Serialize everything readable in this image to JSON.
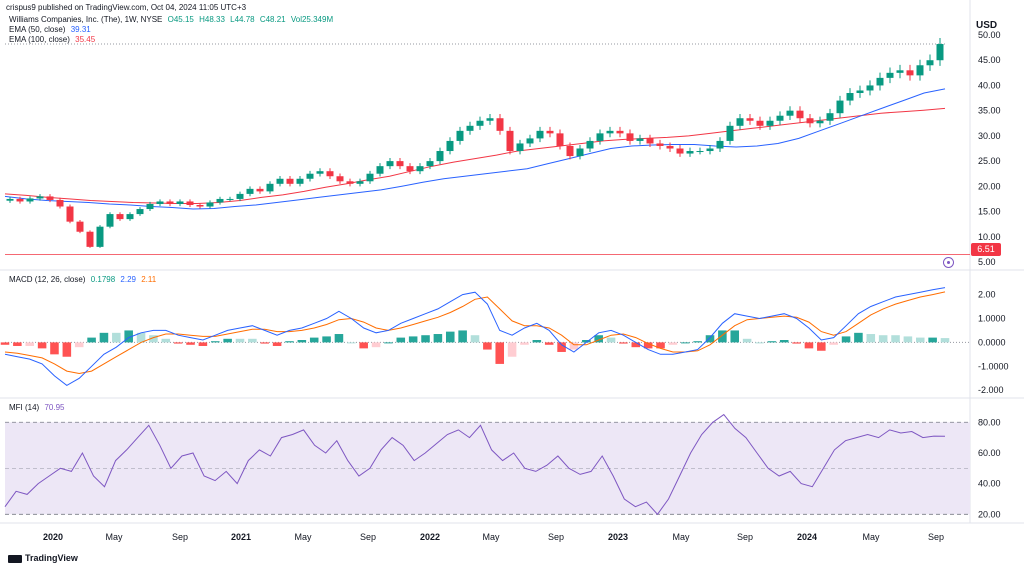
{
  "header": {
    "publisher": "crispus9 published on TradingView.com, Oct 04, 2024 11:05 UTC+3"
  },
  "instrument": {
    "name": "Williams Companies, Inc. (The), 1W, NYSE",
    "ohlc": {
      "o": "O45.15",
      "h": "H48.33",
      "l": "L44.78",
      "c": "C48.21",
      "vol": "Vol25.349M"
    }
  },
  "indicators": {
    "ema50": {
      "label": "EMA (50, close)",
      "value": "39.31",
      "color": "#2962ff"
    },
    "ema100": {
      "label": "EMA (100, close)",
      "value": "35.45",
      "color": "#f23645"
    },
    "macd": {
      "label": "MACD (12, 26, close)",
      "hist": "0.1798",
      "macd": "2.29",
      "signal": "2.11"
    },
    "mfi": {
      "label": "MFI (14)",
      "value": "70.95"
    }
  },
  "currency": "USD",
  "price_marker": "6.51",
  "footer": {
    "brand": "TradingView"
  },
  "colors": {
    "up": "#089981",
    "down": "#f23645",
    "macd": "#2962ff",
    "signal": "#ff6d00",
    "mfi": "#7e57c2",
    "mfi_band": "#ede7f6"
  },
  "chart_data": [
    {
      "type": "candlestick",
      "panel": "price",
      "axis_ticks": [
        "5.00",
        "10.00",
        "15.00",
        "20.00",
        "25.00",
        "30.00",
        "35.00",
        "40.00",
        "45.00",
        "50.00"
      ],
      "x_ticks": [
        "2020",
        "May",
        "Sep",
        "2021",
        "May",
        "Sep",
        "2022",
        "May",
        "Sep",
        "2023",
        "May",
        "Sep",
        "2024",
        "May",
        "Sep"
      ],
      "ylim": [
        5,
        50
      ],
      "horizontal_line": 6.51,
      "closes": [
        17.5,
        17.0,
        17.6,
        18.0,
        17.3,
        16.0,
        13.0,
        11.0,
        8.0,
        12.0,
        14.5,
        13.5,
        14.5,
        15.5,
        16.5,
        17.0,
        16.5,
        17.0,
        16.3,
        16.0,
        16.8,
        17.5,
        17.5,
        18.5,
        19.5,
        19.0,
        20.5,
        21.5,
        20.5,
        21.5,
        22.5,
        23.0,
        22.0,
        21.0,
        20.5,
        21.0,
        22.5,
        24.0,
        25.0,
        24.0,
        23.0,
        24.0,
        25.0,
        27.0,
        29.0,
        31.0,
        32.0,
        33.0,
        33.5,
        31.0,
        27.0,
        28.5,
        29.5,
        31.0,
        30.5,
        28.0,
        26.0,
        27.5,
        29.0,
        30.5,
        31.0,
        30.5,
        29.0,
        29.5,
        28.5,
        28.0,
        27.5,
        26.5,
        27.0,
        27.0,
        27.5,
        29.0,
        32.0,
        33.5,
        33.0,
        32.0,
        33.0,
        34.0,
        35.0,
        33.5,
        32.5,
        33.0,
        34.5,
        37.0,
        38.5,
        39.0,
        40.0,
        41.5,
        42.5,
        43.0,
        42.0,
        44.0,
        45.0,
        48.21
      ],
      "ema50": [
        18.0,
        17.5,
        17.2,
        17.0,
        16.8,
        16.5,
        16.3,
        16.0,
        15.8,
        15.5,
        15.6,
        16.0,
        16.3,
        16.8,
        17.3,
        17.8,
        18.3,
        18.8,
        19.3,
        20.0,
        20.8,
        21.5,
        22.0,
        22.5,
        23.0,
        23.5,
        24.5,
        25.5,
        26.5,
        27.5,
        28.0,
        28.2,
        28.3,
        28.3,
        28.0,
        27.8,
        28.0,
        28.5,
        29.5,
        31.0,
        32.5,
        34.0,
        35.5,
        37.0,
        38.5,
        39.31
      ],
      "ema100": [
        18.5,
        18.2,
        17.8,
        17.5,
        17.2,
        17.0,
        16.8,
        16.7,
        16.6,
        16.6,
        16.8,
        17.2,
        17.8,
        18.3,
        19.0,
        19.8,
        20.5,
        21.3,
        22.0,
        23.0,
        24.0,
        24.8,
        25.5,
        26.2,
        27.0,
        27.5,
        28.0,
        28.5,
        29.0,
        29.3,
        29.5,
        29.7,
        30.0,
        30.5,
        31.0,
        31.5,
        32.0,
        32.5,
        33.0,
        33.5,
        34.0,
        34.5,
        34.8,
        35.1,
        35.45
      ]
    },
    {
      "type": "macd",
      "panel": "macd",
      "axis_ticks": [
        "-2.000",
        "-1.0000",
        "0.0000",
        "1.0000",
        "2.00"
      ],
      "ylim": [
        -2.2,
        2.4
      ],
      "macd": [
        -0.5,
        -0.6,
        -0.7,
        -0.9,
        -1.4,
        -1.8,
        -1.5,
        -1.0,
        -0.5,
        -0.2,
        0.2,
        0.4,
        0.5,
        0.5,
        0.3,
        0.2,
        0.1,
        0.3,
        0.5,
        0.6,
        0.7,
        0.5,
        0.3,
        0.5,
        0.6,
        0.8,
        1.0,
        1.3,
        1.0,
        0.6,
        0.4,
        0.5,
        0.8,
        1.0,
        1.2,
        1.4,
        1.7,
        2.0,
        2.1,
        1.6,
        0.5,
        0.3,
        0.6,
        0.8,
        0.5,
        -0.1,
        -0.4,
        0.0,
        0.4,
        0.5,
        0.3,
        0.0,
        -0.3,
        -0.5,
        -0.5,
        -0.4,
        -0.3,
        0.2,
        0.8,
        1.2,
        1.1,
        1.0,
        1.1,
        1.2,
        1.0,
        0.6,
        0.1,
        0.2,
        0.7,
        1.2,
        1.5,
        1.7,
        1.9,
        2.0,
        2.1,
        2.2,
        2.29
      ],
      "signal": [
        -0.4,
        -0.45,
        -0.55,
        -0.65,
        -0.9,
        -1.2,
        -1.3,
        -1.2,
        -0.9,
        -0.6,
        -0.3,
        0.0,
        0.2,
        0.35,
        0.35,
        0.3,
        0.25,
        0.25,
        0.35,
        0.45,
        0.55,
        0.55,
        0.45,
        0.45,
        0.5,
        0.6,
        0.75,
        0.95,
        1.0,
        0.85,
        0.6,
        0.5,
        0.6,
        0.75,
        0.9,
        1.05,
        1.25,
        1.5,
        1.8,
        1.9,
        1.4,
        0.9,
        0.7,
        0.7,
        0.6,
        0.3,
        -0.1,
        -0.1,
        0.1,
        0.3,
        0.35,
        0.2,
        -0.05,
        -0.25,
        -0.4,
        -0.4,
        -0.35,
        -0.1,
        0.3,
        0.7,
        0.95,
        1.0,
        1.05,
        1.1,
        1.05,
        0.85,
        0.45,
        0.3,
        0.45,
        0.8,
        1.15,
        1.4,
        1.6,
        1.75,
        1.9,
        2.0,
        2.11
      ],
      "hist_last": 0.1798
    },
    {
      "type": "line",
      "panel": "mfi",
      "axis_ticks": [
        "20.00",
        "40.00",
        "60.00",
        "80.00"
      ],
      "ylim": [
        15,
        88
      ],
      "band": [
        20,
        80
      ],
      "midline": 50,
      "values": [
        25,
        35,
        33,
        40,
        45,
        50,
        48,
        60,
        45,
        38,
        55,
        62,
        70,
        78,
        65,
        50,
        58,
        60,
        45,
        42,
        48,
        40,
        55,
        62,
        58,
        70,
        72,
        75,
        65,
        60,
        68,
        55,
        45,
        50,
        62,
        70,
        65,
        55,
        60,
        66,
        72,
        75,
        70,
        78,
        62,
        55,
        60,
        50,
        48,
        52,
        58,
        50,
        46,
        48,
        58,
        45,
        30,
        25,
        28,
        20,
        30,
        45,
        60,
        72,
        80,
        85,
        76,
        70,
        60,
        50,
        45,
        48,
        40,
        38,
        50,
        62,
        68,
        70,
        72,
        70,
        75,
        73,
        74,
        70,
        71,
        70.95
      ]
    }
  ]
}
